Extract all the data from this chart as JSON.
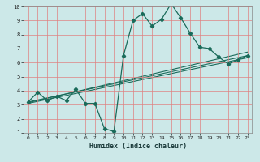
{
  "xlabel": "Humidex (Indice chaleur)",
  "xlim": [
    -0.5,
    23.5
  ],
  "ylim": [
    1,
    10
  ],
  "xticks": [
    0,
    1,
    2,
    3,
    4,
    5,
    6,
    7,
    8,
    9,
    10,
    11,
    12,
    13,
    14,
    15,
    16,
    17,
    18,
    19,
    20,
    21,
    22,
    23
  ],
  "yticks": [
    1,
    2,
    3,
    4,
    5,
    6,
    7,
    8,
    9,
    10
  ],
  "bg_color": "#cce8e8",
  "grid_color": "#e08080",
  "line_color": "#1a6b5a",
  "main_x": [
    0,
    1,
    2,
    3,
    4,
    5,
    6,
    7,
    8,
    9,
    10,
    11,
    12,
    13,
    14,
    15,
    16,
    17,
    18,
    19,
    20,
    21,
    22,
    23
  ],
  "main_y": [
    3.2,
    3.9,
    3.3,
    3.6,
    3.3,
    4.1,
    3.1,
    3.1,
    1.3,
    1.1,
    6.5,
    9.0,
    9.5,
    8.6,
    9.1,
    10.2,
    9.2,
    8.1,
    7.1,
    7.0,
    6.4,
    5.9,
    6.2,
    6.5
  ],
  "trend_lines": [
    [
      3.15,
      6.75
    ],
    [
      3.2,
      6.5
    ],
    [
      3.1,
      6.35
    ]
  ]
}
